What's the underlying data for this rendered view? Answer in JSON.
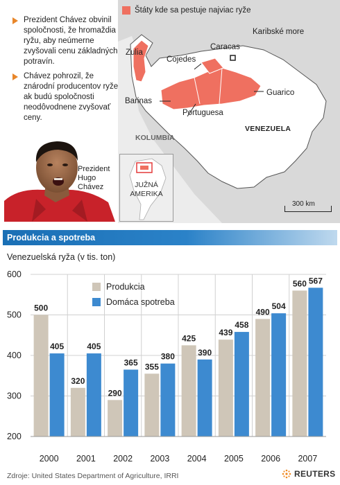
{
  "bullets": [
    "Prezident Chávez obvinil spoločnosti, že hromaždia ryžu, aby neúmerne zvyšovali cenu základných potravín.",
    "Chávez pohrozil, že znárodní producentov ryže ak budú spoločnosti neodôvodnene zvyšovať ceny."
  ],
  "portrait_caption": "Prezident Hugo Chávez",
  "map": {
    "legend_label": "Štáty kde sa pestuje najviac ryže",
    "highlight_color": "#ef7060",
    "labels": {
      "zulia": "Zulia",
      "cojedes": "Cojedes",
      "caracas": "Caracas",
      "karibske": "Karibské more",
      "barinas": "Barinas",
      "guarico": "Guarico",
      "portuguesa": "Portuguesa",
      "kolumbia": "KOLUMBIA",
      "venezuela": "VENEZUELA",
      "juzna_amerika": "JUŽNÁ AMERIKA",
      "scale": "300 km"
    }
  },
  "section_title": "Produkcia a spotreba",
  "chart_data": {
    "type": "bar",
    "title": "",
    "ylabel": "Venezuelská ryža (v tis. ton)",
    "categories": [
      "2000",
      "2001",
      "2002",
      "2003",
      "2004",
      "2005",
      "2006",
      "2007"
    ],
    "series": [
      {
        "name": "Produkcia",
        "color": "#cfc6b8",
        "values": [
          500,
          320,
          290,
          355,
          425,
          439,
          490,
          560
        ]
      },
      {
        "name": "Domáca spotreba",
        "color": "#3d8ad0",
        "values": [
          405,
          405,
          365,
          380,
          390,
          458,
          504,
          567
        ]
      }
    ],
    "ylim": [
      200,
      600
    ],
    "yticks": [
      200,
      300,
      400,
      500,
      600
    ],
    "grid": true,
    "legend": "top-left"
  },
  "source": "Zdroje: United States Department of Agriculture, IRRI",
  "logo_text": "REUTERS"
}
